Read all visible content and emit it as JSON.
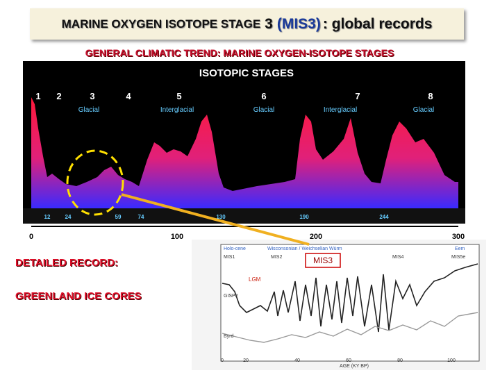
{
  "header": {
    "title_main": "MARINE OXYGEN ISOTOPE STAGE",
    "title_number": "3",
    "title_highlight": "(MIS3)",
    "title_suffix": ": global records"
  },
  "subtitle": "GENERAL CLIMATIC TREND: MARINE OXYGEN-ISOTOPE STAGES",
  "isotopic_chart": {
    "title": "ISOTOPIC STAGES",
    "stage_numbers": [
      "1",
      "2",
      "3",
      "4",
      "5",
      "6",
      "7",
      "8"
    ],
    "stage_types": [
      "Glacial",
      "Interglacial",
      "Glacial",
      "Interglacial",
      "Glacial"
    ],
    "boundary_labels": [
      "12",
      "24",
      "59",
      "74",
      "130",
      "190",
      "244"
    ],
    "axis_labels": [
      "0",
      "100",
      "200",
      "300"
    ]
  },
  "detail": {
    "heading": "DETAILED RECORD:",
    "subheading": "GREENLAND ICE CORES"
  },
  "ice_core_chart": {
    "callout": "MIS3",
    "lgm_label": "LGM",
    "x_axis_label": "AGE (KY BP)",
    "top_labels": [
      "Holo-cene",
      "Wisconsonian / Weichselian Würm",
      "Eem"
    ],
    "stage_labels": [
      "MIS1",
      "MIS2",
      "MIS4",
      "MIS5e"
    ],
    "core_labels": [
      "GISP2",
      "Byrd"
    ],
    "x_ticks": [
      "0",
      "20",
      "40",
      "60",
      "80",
      "100"
    ]
  }
}
